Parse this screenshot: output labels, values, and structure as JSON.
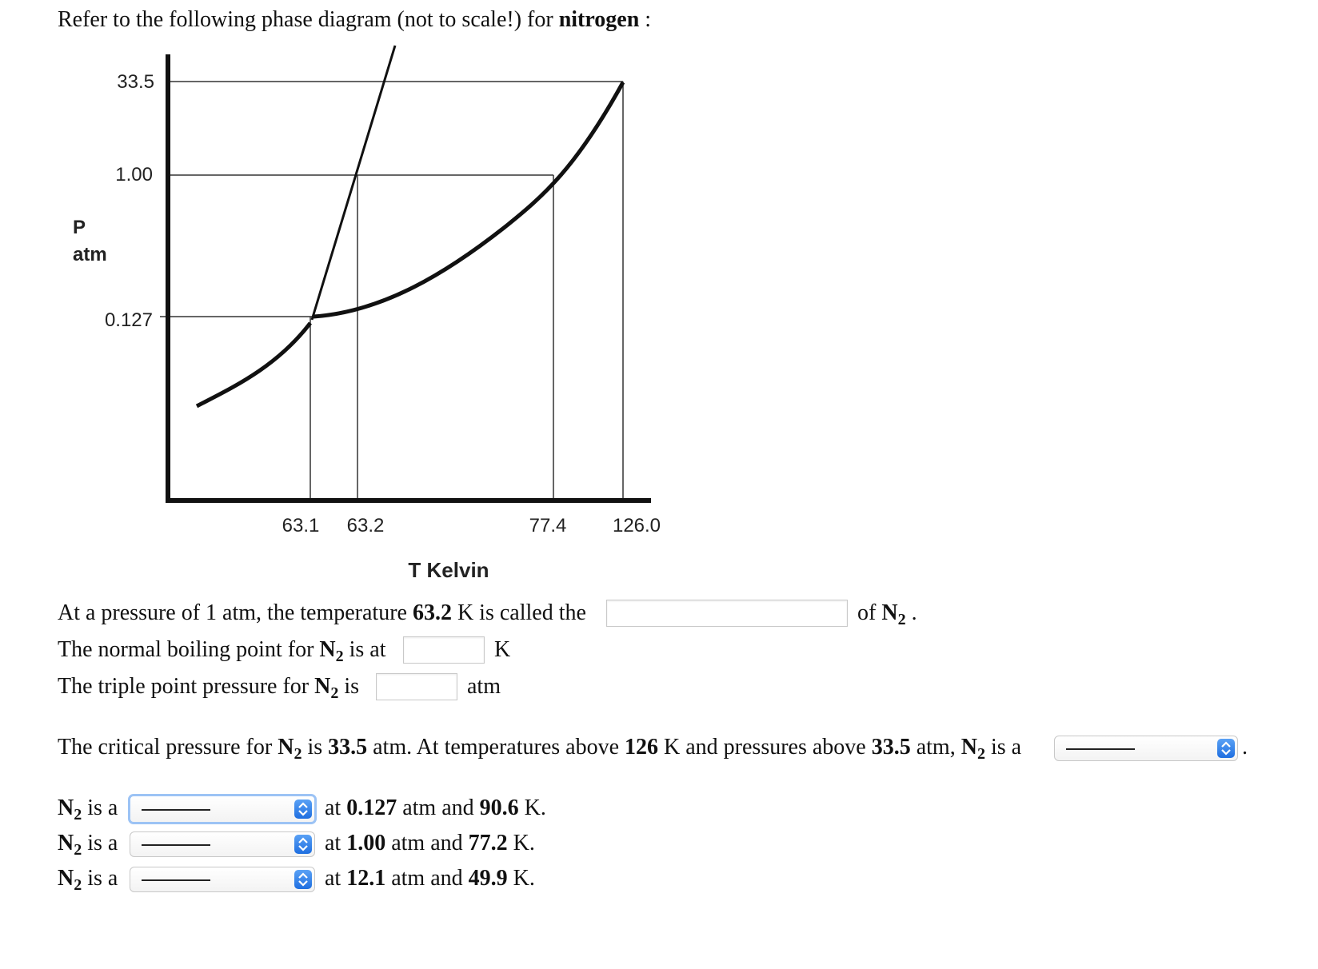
{
  "header": {
    "intro_text": "Refer to the following phase diagram (not to scale!) for",
    "intro_bold": "nitrogen",
    "intro_colon": ":"
  },
  "diagram": {
    "y_ticks": [
      "33.5",
      "1.00",
      "0.127"
    ],
    "x_ticks": [
      "63.1",
      "63.2",
      "77.4",
      "126.0"
    ],
    "y_label_line1": "P",
    "y_label_line2": "atm",
    "x_label": "T Kelvin"
  },
  "questions": {
    "q1": {
      "before": "At a pressure of 1 atm, the temperature",
      "bold_value": "63.2",
      "after": "K is called the",
      "input_value": "",
      "suffix_of": "of",
      "suffix_species": "N",
      "suffix_sub": "2",
      "suffix_end": "."
    },
    "q2": {
      "before": "The normal boiling point for",
      "species": "N",
      "sub": "2",
      "after": "is at",
      "input_value": "",
      "unit": "K"
    },
    "q3": {
      "before": "The triple point pressure for",
      "species": "N",
      "sub": "2",
      "after": "is",
      "input_value": "",
      "unit": "atm"
    },
    "q4": {
      "t1": "The critical pressure for",
      "species": "N",
      "sub": "2",
      "t2": "is",
      "b1": "33.5",
      "t3": "atm. At temperatures above",
      "b2": "126",
      "t4": "K and pressures above",
      "b3": "33.5",
      "t5": "atm,",
      "species2": "N",
      "sub2": "2",
      "t6": "is a",
      "select_value": "______",
      "end": "."
    },
    "rows": [
      {
        "species": "N",
        "sub": "2",
        "is_a": "is a",
        "select_value": "______",
        "at": "at",
        "pressure": "0.127",
        "atm_and": "atm and",
        "temp": "90.6",
        "unit": "K."
      },
      {
        "species": "N",
        "sub": "2",
        "is_a": "is a",
        "select_value": "______",
        "at": "at",
        "pressure": "1.00",
        "atm_and": "atm and",
        "temp": "77.2",
        "unit": "K."
      },
      {
        "species": "N",
        "sub": "2",
        "is_a": "is a",
        "select_value": "______",
        "at": "at",
        "pressure": "12.1",
        "atm_and": "atm and",
        "temp": "49.9",
        "unit": "K."
      }
    ]
  },
  "colors": {
    "select_arrow": "#2f7ae5",
    "focus_ring": "#9cc3f5"
  }
}
